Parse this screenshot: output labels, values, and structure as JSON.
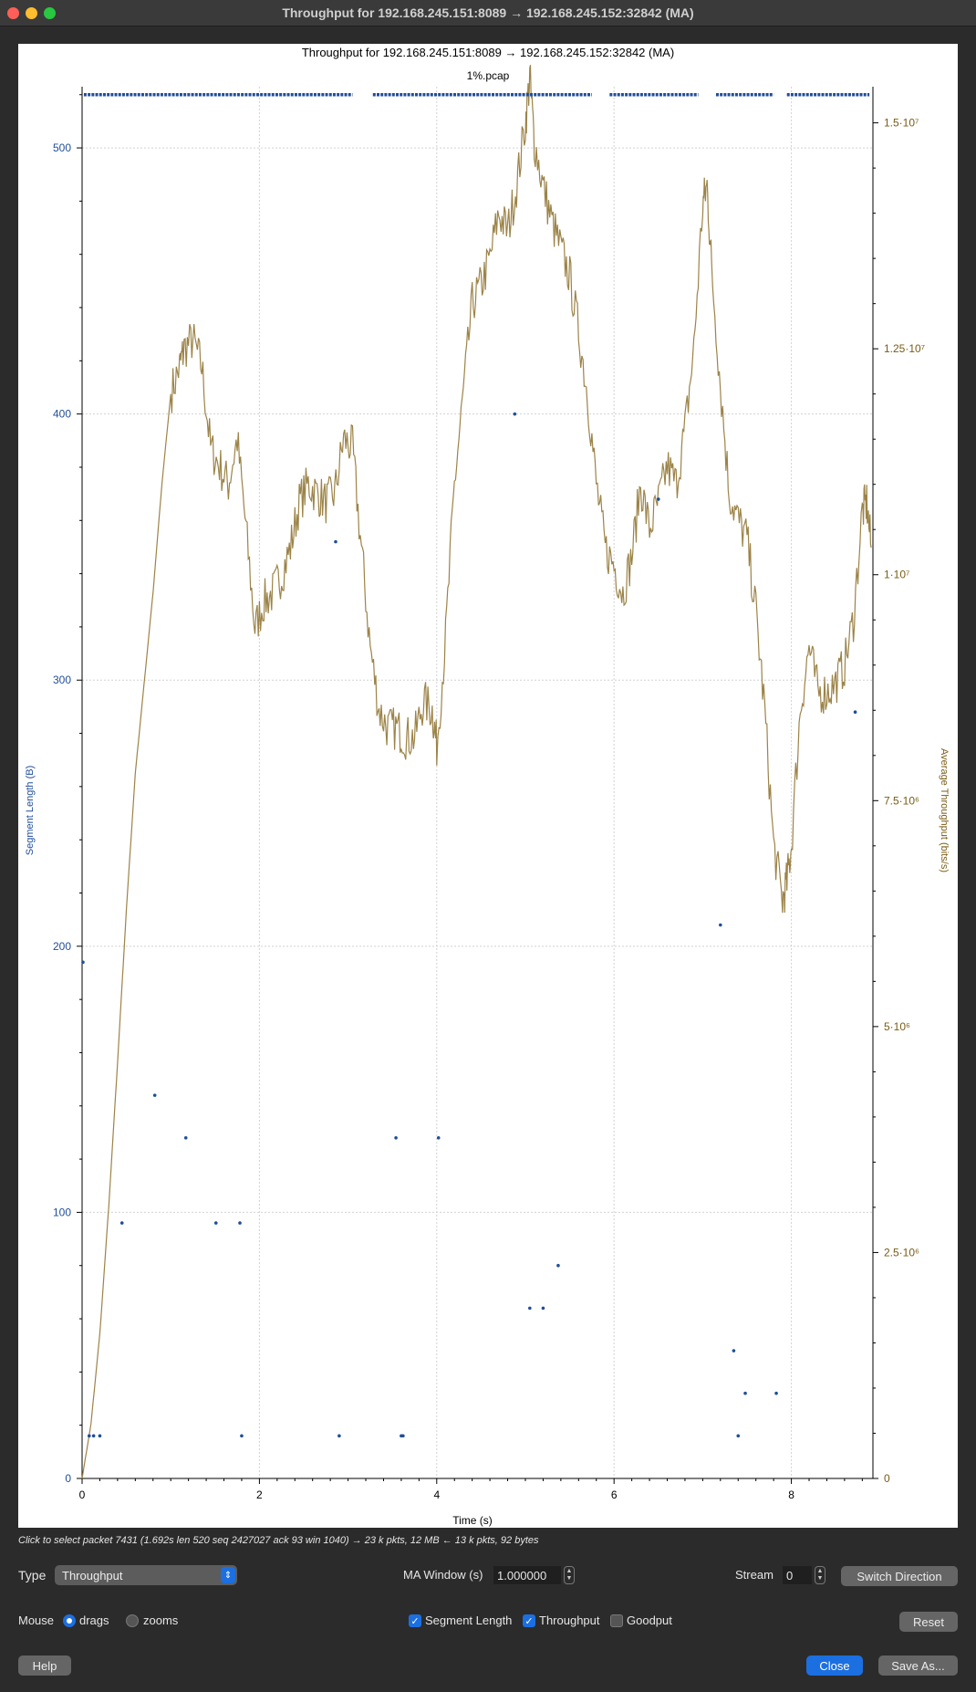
{
  "window": {
    "title": "Throughput for 192.168.245.151:8089 → 192.168.245.152:32842 (MA)"
  },
  "chart": {
    "title": "Throughput for 192.168.245.151:8089 → 192.168.245.152:32842 (MA)",
    "subtitle": "1%.pcap",
    "xlabel": "Time (s)",
    "ylabel_left": "Segment Length (B)",
    "ylabel_right": "Average Throughput (bits/s)",
    "x_ticks": [
      "0",
      "2",
      "4",
      "6",
      "8"
    ],
    "y_left_ticks": [
      "0",
      "100",
      "200",
      "300",
      "400",
      "500"
    ],
    "y_right_ticks": [
      "0",
      "2.5·10⁶",
      "5·10⁶",
      "7.5·10⁶",
      "1·10⁷",
      "1.25·10⁷",
      "1.5·10⁷"
    ]
  },
  "chart_data": {
    "type": "scatter+line",
    "x_range": [
      0,
      8.92
    ],
    "y_left_range": [
      0,
      523
    ],
    "y_right_range": [
      0,
      15400000.0
    ],
    "grid": true,
    "series": [
      {
        "name": "Segment Length",
        "type": "scatter",
        "axis": "left",
        "color": "#1f4e9a",
        "full_segments_value": 520,
        "full_segments_time_ranges": [
          [
            0.02,
            3.05
          ],
          [
            3.28,
            5.75
          ],
          [
            5.95,
            6.95
          ],
          [
            7.15,
            7.8
          ],
          [
            7.95,
            8.88
          ]
        ],
        "points": [
          [
            0.01,
            194
          ],
          [
            0.08,
            16
          ],
          [
            0.13,
            16
          ],
          [
            0.2,
            16
          ],
          [
            0.45,
            96
          ],
          [
            0.82,
            144
          ],
          [
            1.17,
            128
          ],
          [
            1.51,
            96
          ],
          [
            1.78,
            96
          ],
          [
            1.8,
            16
          ],
          [
            2.86,
            352
          ],
          [
            2.9,
            16
          ],
          [
            3.54,
            128
          ],
          [
            3.6,
            16
          ],
          [
            3.62,
            16
          ],
          [
            4.02,
            128
          ],
          [
            4.88,
            400
          ],
          [
            5.05,
            64
          ],
          [
            5.2,
            64
          ],
          [
            5.37,
            80
          ],
          [
            6.5,
            368
          ],
          [
            7.2,
            208
          ],
          [
            7.35,
            48
          ],
          [
            7.4,
            16
          ],
          [
            7.48,
            32
          ],
          [
            7.83,
            32
          ],
          [
            8.72,
            288
          ]
        ]
      },
      {
        "name": "Throughput",
        "type": "line",
        "axis": "right",
        "color": "#9c8348",
        "points": [
          [
            0,
            0
          ],
          [
            0.1,
            600000
          ],
          [
            0.2,
            1600000
          ],
          [
            0.3,
            3000000
          ],
          [
            0.4,
            4600000
          ],
          [
            0.5,
            6300000
          ],
          [
            0.6,
            7800000
          ],
          [
            0.7,
            8800000
          ],
          [
            0.8,
            9800000
          ],
          [
            0.9,
            11000000
          ],
          [
            1.0,
            12000000
          ],
          [
            1.1,
            12300000
          ],
          [
            1.15,
            12500000
          ],
          [
            1.25,
            12600000
          ],
          [
            1.35,
            12300000
          ],
          [
            1.45,
            11400000
          ],
          [
            1.55,
            11200000
          ],
          [
            1.65,
            11000000
          ],
          [
            1.75,
            11500000
          ],
          [
            1.85,
            10500000
          ],
          [
            1.95,
            9400000
          ],
          [
            2.05,
            9700000
          ],
          [
            2.15,
            9800000
          ],
          [
            2.25,
            10000000
          ],
          [
            2.35,
            10300000
          ],
          [
            2.45,
            10800000
          ],
          [
            2.55,
            11000000
          ],
          [
            2.65,
            10900000
          ],
          [
            2.75,
            10800000
          ],
          [
            2.85,
            10900000
          ],
          [
            2.95,
            11500000
          ],
          [
            3.05,
            11400000
          ],
          [
            3.15,
            10300000
          ],
          [
            3.25,
            9200000
          ],
          [
            3.35,
            8500000
          ],
          [
            3.45,
            8300000
          ],
          [
            3.55,
            8300000
          ],
          [
            3.65,
            8200000
          ],
          [
            3.75,
            8200000
          ],
          [
            3.85,
            8600000
          ],
          [
            3.95,
            8500000
          ],
          [
            4.0,
            8100000
          ],
          [
            4.1,
            9300000
          ],
          [
            4.2,
            11000000
          ],
          [
            4.3,
            12000000
          ],
          [
            4.4,
            13000000
          ],
          [
            4.5,
            13200000
          ],
          [
            4.6,
            13500000
          ],
          [
            4.7,
            14000000
          ],
          [
            4.8,
            13800000
          ],
          [
            4.9,
            14300000
          ],
          [
            5.0,
            15000000
          ],
          [
            5.05,
            15500000
          ],
          [
            5.1,
            14800000
          ],
          [
            5.2,
            14300000
          ],
          [
            5.3,
            13900000
          ],
          [
            5.4,
            13600000
          ],
          [
            5.5,
            13300000
          ],
          [
            5.6,
            12700000
          ],
          [
            5.7,
            12000000
          ],
          [
            5.8,
            11000000
          ],
          [
            5.9,
            10300000
          ],
          [
            6.0,
            10100000
          ],
          [
            6.1,
            9800000
          ],
          [
            6.2,
            10200000
          ],
          [
            6.3,
            11000000
          ],
          [
            6.4,
            10500000
          ],
          [
            6.5,
            10800000
          ],
          [
            6.6,
            11200000
          ],
          [
            6.7,
            11000000
          ],
          [
            6.8,
            11600000
          ],
          [
            6.9,
            12500000
          ],
          [
            7.0,
            14100000
          ],
          [
            7.05,
            14300000
          ],
          [
            7.1,
            13400000
          ],
          [
            7.2,
            12100000
          ],
          [
            7.3,
            10900000
          ],
          [
            7.4,
            10600000
          ],
          [
            7.5,
            10400000
          ],
          [
            7.6,
            9600000
          ],
          [
            7.7,
            8500000
          ],
          [
            7.8,
            7000000
          ],
          [
            7.9,
            6400000
          ],
          [
            7.95,
            6600000
          ],
          [
            8.0,
            7000000
          ],
          [
            8.1,
            8500000
          ],
          [
            8.2,
            9200000
          ],
          [
            8.3,
            8700000
          ],
          [
            8.4,
            8700000
          ],
          [
            8.5,
            8800000
          ],
          [
            8.6,
            9000000
          ],
          [
            8.7,
            9500000
          ],
          [
            8.8,
            10700000
          ],
          [
            8.85,
            10800000
          ],
          [
            8.9,
            10300000
          ]
        ]
      }
    ]
  },
  "status": {
    "hint": "Click to select packet 7431 (1.692s len 520 seq 2427027 ack 93 win 1040) → 23 k pkts, 12 MB ← 13 k pkts, 92 bytes"
  },
  "controls": {
    "type_label": "Type",
    "type_value": "Throughput",
    "ma_label": "MA Window (s)",
    "ma_value": "1.000000",
    "stream_label": "Stream",
    "stream_value": "0",
    "switch_direction": "Switch Direction",
    "mouse_label": "Mouse",
    "drags": "drags",
    "zooms": "zooms",
    "segment_length": "Segment Length",
    "throughput": "Throughput",
    "goodput": "Goodput",
    "reset": "Reset",
    "help": "Help",
    "close": "Close",
    "save_as": "Save As..."
  },
  "colors": {
    "segment": "#1f4e9a",
    "throughput": "#9c8348",
    "right_axis": "#7a5c14",
    "accent": "#1c6fe0"
  }
}
